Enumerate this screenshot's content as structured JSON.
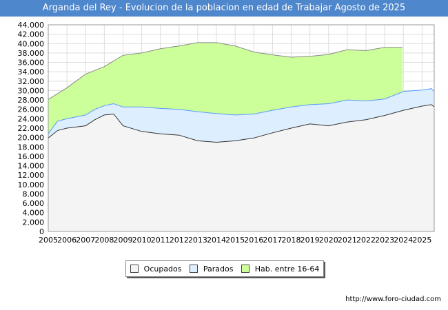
{
  "title": "Arganda del Rey - Evolucion de la poblacion en edad de Trabajar Agosto de 2025",
  "source": "http://www.foro-ciudad.com",
  "chart_data": {
    "type": "area",
    "title": "Arganda del Rey - Evolucion de la poblacion en edad de Trabajar Agosto de 2025",
    "x": [
      2005,
      2006,
      2007,
      2008,
      2009,
      2010,
      2011,
      2012,
      2013,
      2014,
      2015,
      2016,
      2017,
      2018,
      2019,
      2020,
      2021,
      2022,
      2023,
      2024,
      2025
    ],
    "x_range": [
      2005,
      2025.65
    ],
    "ylim": [
      0,
      44000
    ],
    "y_ticks": [
      0,
      2000,
      4000,
      6000,
      8000,
      10000,
      12000,
      14000,
      16000,
      18000,
      20000,
      22000,
      24000,
      26000,
      28000,
      30000,
      32000,
      34000,
      36000,
      38000,
      40000,
      42000,
      44000
    ],
    "y_tick_labels": [
      "0",
      "2.000",
      "4.000",
      "6.000",
      "8.000",
      "10.000",
      "12.000",
      "14.000",
      "16.000",
      "18.000",
      "20.000",
      "22.000",
      "24.000",
      "26.000",
      "28.000",
      "30.000",
      "32.000",
      "34.000",
      "36.000",
      "38.000",
      "40.000",
      "42.000",
      "44.000"
    ],
    "x_tick_labels": [
      "2005",
      "2006",
      "2007",
      "2008",
      "2009",
      "2010",
      "2011",
      "2012",
      "2013",
      "2014",
      "2015",
      "2016",
      "2017",
      "2018",
      "2019",
      "2020",
      "2021",
      "2022",
      "2023",
      "2024",
      "2025"
    ],
    "grid": true,
    "legend_position": "bottom",
    "series": [
      {
        "name": "Hab. entre 16-64",
        "color": "#ccff99",
        "line_color": "#888888",
        "x": [
          2005,
          2006,
          2007,
          2008,
          2009,
          2010,
          2011,
          2012,
          2013,
          2014,
          2015,
          2016,
          2017,
          2018,
          2019,
          2020,
          2021,
          2022,
          2023,
          2023.95
        ],
        "values": [
          28100,
          30600,
          33500,
          35100,
          37500,
          38000,
          38900,
          39500,
          40200,
          40200,
          39500,
          38200,
          37600,
          37100,
          37300,
          37700,
          38700,
          38500,
          39200,
          39200
        ]
      },
      {
        "name": "Parados",
        "color": "#ddeeff",
        "line_color": "#5599ff",
        "x": [
          2005,
          2005.5,
          2006,
          2007,
          2007.5,
          2008,
          2008.5,
          2009,
          2010,
          2011,
          2012,
          2013,
          2014,
          2015,
          2016,
          2017,
          2018,
          2019,
          2020,
          2021,
          2022,
          2023,
          2024,
          2025,
          2025.5,
          2025.65
        ],
        "values": [
          20800,
          23500,
          24000,
          24800,
          26000,
          26800,
          27200,
          26500,
          26500,
          26200,
          26000,
          25500,
          25100,
          24800,
          25000,
          25800,
          26500,
          27000,
          27200,
          28000,
          27800,
          28200,
          29800,
          30100,
          30400,
          29800
        ]
      },
      {
        "name": "Ocupados",
        "color": "#f4f4f4",
        "line_color": "#333333",
        "x": [
          2005,
          2005.5,
          2006,
          2007,
          2007.5,
          2008,
          2008.5,
          2009,
          2010,
          2011,
          2012,
          2013,
          2014,
          2015,
          2016,
          2017,
          2018,
          2019,
          2020,
          2021,
          2022,
          2023,
          2024,
          2025,
          2025.5,
          2025.65
        ],
        "values": [
          19900,
          21500,
          22000,
          22500,
          23800,
          24800,
          25000,
          22500,
          21300,
          20800,
          20500,
          19300,
          19000,
          19300,
          19900,
          21000,
          22000,
          22900,
          22500,
          23300,
          23800,
          24700,
          25800,
          26700,
          27000,
          26500
        ]
      }
    ]
  }
}
